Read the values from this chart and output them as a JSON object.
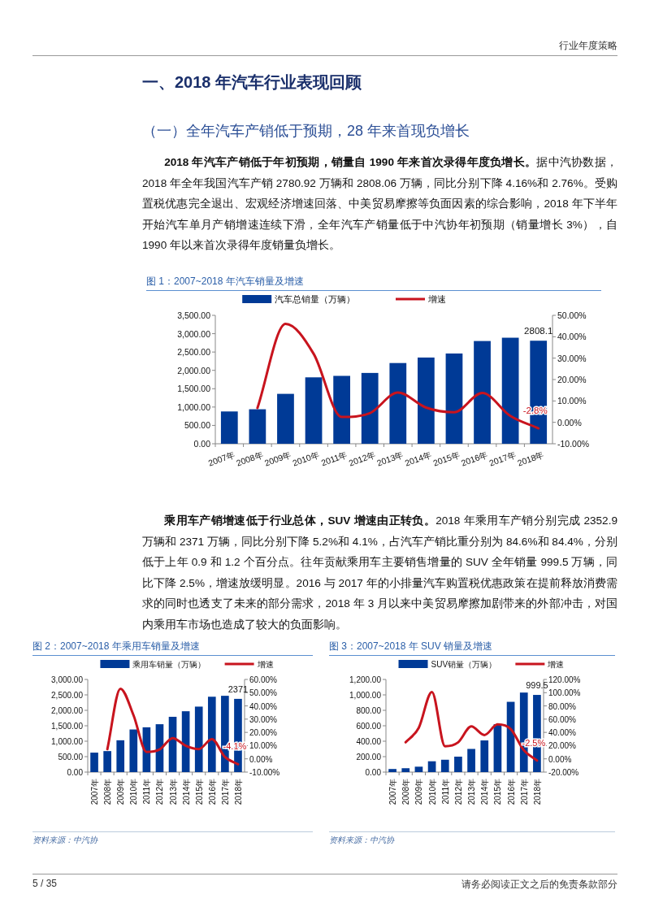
{
  "chart_data": [
    {
      "type": "other",
      "annotations": [
        "行业年度策略"
      ]
    },
    {
      "type": "other",
      "title": "一、2018 年汽车行业表现回顾",
      "subtitle": "（一）全年汽车产销低于预期，28 年来首现负增长",
      "annotations": [
        "2018 年汽车产销低于年初预期，销量自 1990 年来首次录得年度负增长。",
        "据中汽协数据，2018 年全年我国汽车产销 2780.92 万辆和 2808.06 万辆，同比分别下降 4.16%和 2.76%。受购置税优惠完全退出、宏观经济增速回落、中美贸易摩擦等负面因素的综合影响，2018 年下半年开始汽车单月产销增速连续下滑，全年汽车产销量低于中汽协年初预期（销量增长 3%），自 1990 年以来首次录得年度销量负增长。"
      ]
    },
    {
      "type": "bar",
      "title": "图 1：2007~2018 年汽车销量及增速",
      "legend": "top",
      "categories": [
        "2007年",
        "2008年",
        "2009年",
        "2010年",
        "2011年",
        "2012年",
        "2013年",
        "2014年",
        "2015年",
        "2016年",
        "2017年",
        "2018年"
      ],
      "series": [
        {
          "name": "汽车总销量（万辆）",
          "color": "#003a96",
          "values": [
            880,
            940,
            1360,
            1810,
            1850,
            1930,
            2200,
            2350,
            2460,
            2800,
            2890,
            2808.1
          ],
          "value_labels": [
            null,
            null,
            null,
            null,
            null,
            null,
            null,
            null,
            null,
            null,
            null,
            "2808.1"
          ]
        },
        {
          "name": "增速",
          "type": "line",
          "axis": "y2",
          "color": "#c8141e",
          "values": [
            null,
            6.7,
            46,
            32,
            2.5,
            4.3,
            13.9,
            6.9,
            4.7,
            13.7,
            3.0,
            -2.8
          ],
          "value_labels": [
            null,
            null,
            null,
            null,
            null,
            null,
            null,
            null,
            null,
            null,
            null,
            "-2.8%"
          ]
        }
      ],
      "ylim": [
        0,
        3500
      ],
      "yticks": [
        {
          "value": 0,
          "label": "0.00"
        },
        {
          "value": 500,
          "label": "500.00"
        },
        {
          "value": 1000,
          "label": "1,000.00"
        },
        {
          "value": 1500,
          "label": "1,500.00"
        },
        {
          "value": 2000,
          "label": "2,000.00"
        },
        {
          "value": 2500,
          "label": "2,500.00"
        },
        {
          "value": 3000,
          "label": "3,000.00"
        },
        {
          "value": 3500,
          "label": "3,500.00"
        }
      ],
      "y2lim": [
        -10,
        50
      ],
      "y2ticks": [
        {
          "value": -10,
          "label": "-10.00%"
        },
        {
          "value": 0,
          "label": "0.00%"
        },
        {
          "value": 10,
          "label": "10.00%"
        },
        {
          "value": 20,
          "label": "20.00%"
        },
        {
          "value": 30,
          "label": "30.00%"
        },
        {
          "value": 40,
          "label": "40.00%"
        },
        {
          "value": 50,
          "label": "50.00%"
        }
      ]
    },
    {
      "type": "other",
      "annotations": [
        "乘用车产销增速低于行业总体，SUV 增速由正转负。",
        "2018 年乘用车产销分别完成 2352.9 万辆和 2371 万辆，同比分别下降 5.2%和 4.1%，占汽车产销比重分别为 84.6%和 84.4%，分别低于上年 0.9 和 1.2 个百分点。往年贡献乘用车主要销售增量的 SUV 全年销量 999.5 万辆，同比下降 2.5%，增速放缓明显。2016 与 2017 年的小排量汽车购置税优惠政策在提前释放消费需求的同时也透支了未来的部分需求，2018 年 3 月以来中美贸易摩擦加剧带来的外部冲击，对国内乘用车市场也造成了较大的负面影响。"
      ]
    },
    {
      "type": "bar",
      "title": "图 2：2007~2018 年乘用车销量及增速",
      "legend": "top",
      "annotations": [
        "资料来源：中汽协"
      ],
      "categories": [
        "2007年",
        "2008年",
        "2009年",
        "2010年",
        "2011年",
        "2012年",
        "2013年",
        "2014年",
        "2015年",
        "2016年",
        "2017年",
        "2018年"
      ],
      "series": [
        {
          "name": "乘用车销量（万辆）",
          "color": "#003a96",
          "values": [
            630,
            680,
            1030,
            1380,
            1450,
            1550,
            1790,
            1970,
            2120,
            2440,
            2470,
            2371
          ],
          "value_labels": [
            null,
            null,
            null,
            null,
            null,
            null,
            null,
            null,
            null,
            null,
            null,
            "2371"
          ]
        },
        {
          "name": "增速",
          "type": "line",
          "axis": "y2",
          "color": "#c8141e",
          "values": [
            null,
            7.3,
            53,
            33,
            5.2,
            7.1,
            15.7,
            9.9,
            7.3,
            14.9,
            1.4,
            -4.1
          ],
          "value_labels": [
            null,
            null,
            null,
            null,
            null,
            null,
            null,
            null,
            null,
            null,
            null,
            "-4.1%"
          ]
        }
      ],
      "ylim": [
        0,
        3000
      ],
      "yticks": [
        {
          "value": 0,
          "label": "0.00"
        },
        {
          "value": 500,
          "label": "500.00"
        },
        {
          "value": 1000,
          "label": "1,000.00"
        },
        {
          "value": 1500,
          "label": "1,500.00"
        },
        {
          "value": 2000,
          "label": "2,000.00"
        },
        {
          "value": 2500,
          "label": "2,500.00"
        },
        {
          "value": 3000,
          "label": "3,000.00"
        }
      ],
      "y2lim": [
        -10,
        60
      ],
      "y2ticks": [
        {
          "value": -10,
          "label": "-10.00%"
        },
        {
          "value": 0,
          "label": "0.00%"
        },
        {
          "value": 10,
          "label": "10.00%"
        },
        {
          "value": 20,
          "label": "20.00%"
        },
        {
          "value": 30,
          "label": "30.00%"
        },
        {
          "value": 40,
          "label": "40.00%"
        },
        {
          "value": 50,
          "label": "50.00%"
        },
        {
          "value": 60,
          "label": "60.00%"
        }
      ]
    },
    {
      "type": "bar",
      "title": "图 3：2007~2018 年 SUV 销量及增速",
      "legend": "top",
      "annotations": [
        "资料来源：中汽协"
      ],
      "categories": [
        "2007年",
        "2008年",
        "2009年",
        "2010年",
        "2011年",
        "2012年",
        "2013年",
        "2014年",
        "2015年",
        "2016年",
        "2017年",
        "2018年"
      ],
      "series": [
        {
          "name": "SUV销量（万辆）",
          "color": "#003a96",
          "values": [
            40,
            50,
            70,
            140,
            160,
            200,
            300,
            410,
            620,
            910,
            1030,
            999.5
          ],
          "value_labels": [
            null,
            null,
            null,
            null,
            null,
            null,
            null,
            null,
            null,
            null,
            null,
            "999.5"
          ]
        },
        {
          "name": "增速",
          "type": "line",
          "axis": "y2",
          "color": "#c8141e",
          "values": [
            null,
            25,
            47,
            101,
            19,
            25,
            49,
            36,
            52,
            45,
            13,
            -2.5
          ],
          "value_labels": [
            null,
            null,
            null,
            null,
            null,
            null,
            null,
            null,
            null,
            null,
            null,
            "-2.5%"
          ]
        }
      ],
      "ylim": [
        0,
        1200
      ],
      "yticks": [
        {
          "value": 0,
          "label": "0.00"
        },
        {
          "value": 200,
          "label": "200.00"
        },
        {
          "value": 400,
          "label": "400.00"
        },
        {
          "value": 600,
          "label": "600.00"
        },
        {
          "value": 800,
          "label": "800.00"
        },
        {
          "value": 1000,
          "label": "1,000.00"
        },
        {
          "value": 1200,
          "label": "1,200.00"
        }
      ],
      "y2lim": [
        -20,
        120
      ],
      "y2ticks": [
        {
          "value": -20,
          "label": "-20.00%"
        },
        {
          "value": 0,
          "label": "0.00%"
        },
        {
          "value": 20,
          "label": "20.00%"
        },
        {
          "value": 40,
          "label": "40.00%"
        },
        {
          "value": 60,
          "label": "60.00%"
        },
        {
          "value": 80,
          "label": "80.00%"
        },
        {
          "value": 100,
          "label": "100.00%"
        },
        {
          "value": 120,
          "label": "120.00%"
        }
      ]
    },
    {
      "type": "other",
      "annotations": [
        "5 / 35",
        "请务必阅读正文之后的免责条款部分"
      ]
    }
  ]
}
